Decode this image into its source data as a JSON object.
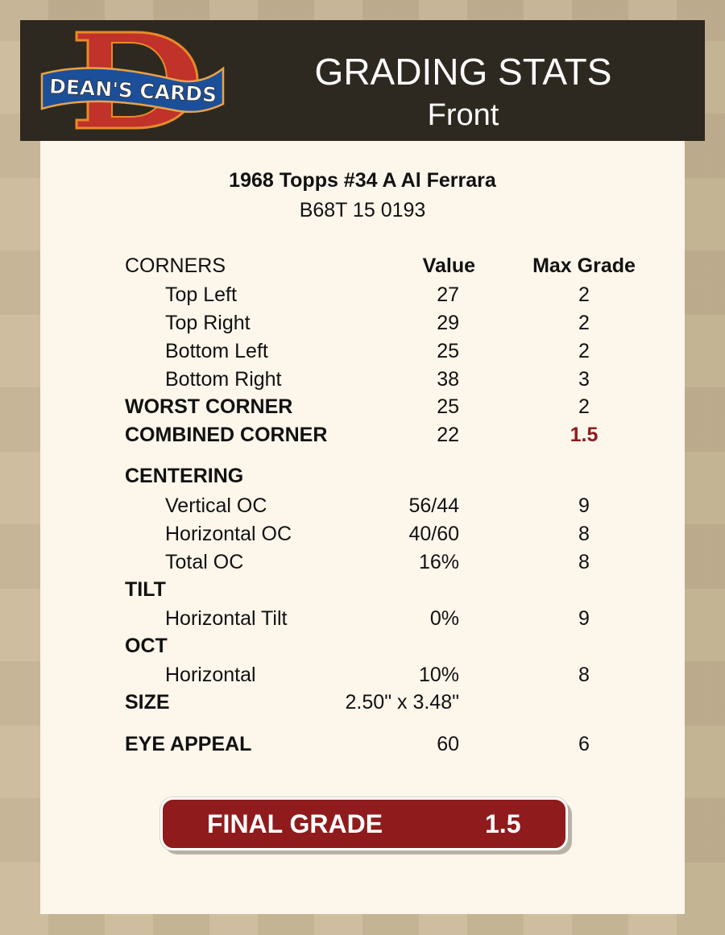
{
  "header": {
    "logo_text": "DEAN'S CARDS",
    "title": "GRADING STATS",
    "subtitle": "Front"
  },
  "card": {
    "title": "1968 Topps #34 A Al Ferrara",
    "code": "B68T 15 0193"
  },
  "columns": {
    "value": "Value",
    "max_grade": "Max Grade"
  },
  "rows": [
    {
      "label": "CORNERS",
      "type": "colhdr"
    },
    {
      "label": "Top Left",
      "value": "27",
      "max": "2",
      "type": "sub"
    },
    {
      "label": "Top Right",
      "value": "29",
      "max": "2",
      "type": "sub"
    },
    {
      "label": "Bottom Left",
      "value": "25",
      "max": "2",
      "type": "sub"
    },
    {
      "label": "Bottom Right",
      "value": "38",
      "max": "3",
      "type": "sub"
    },
    {
      "label": "WORST CORNER",
      "value": "25",
      "max": "2",
      "type": "hdr"
    },
    {
      "label": "COMBINED CORNER",
      "value": "22",
      "max": "1.5",
      "type": "hdr",
      "highlight": true
    },
    {
      "label": "CENTERING",
      "type": "hdr"
    },
    {
      "label": "Vertical OC",
      "value": "56/44",
      "max": "9",
      "type": "sub"
    },
    {
      "label": "Horizontal OC",
      "value": "40/60",
      "max": "8",
      "type": "sub"
    },
    {
      "label": "Total OC",
      "value": "16%",
      "max": "8",
      "type": "sub"
    },
    {
      "label": "TILT",
      "type": "hdr"
    },
    {
      "label": "Horizontal Tilt",
      "value": "0%",
      "max": "9",
      "type": "sub"
    },
    {
      "label": "OCT",
      "type": "hdr"
    },
    {
      "label": "Horizontal",
      "value": "10%",
      "max": "8",
      "type": "sub"
    },
    {
      "label": "SIZE",
      "value": "2.50\" x 3.48\"",
      "type": "hdr"
    },
    {
      "label": "EYE APPEAL",
      "value": "60",
      "max": "6",
      "type": "hdr"
    }
  ],
  "final": {
    "label": "FINAL GRADE",
    "value": "1.5"
  },
  "colors": {
    "header_bg": "#2e2920",
    "accent_red": "#8f1b1c",
    "panel": "#fcf6eb"
  }
}
